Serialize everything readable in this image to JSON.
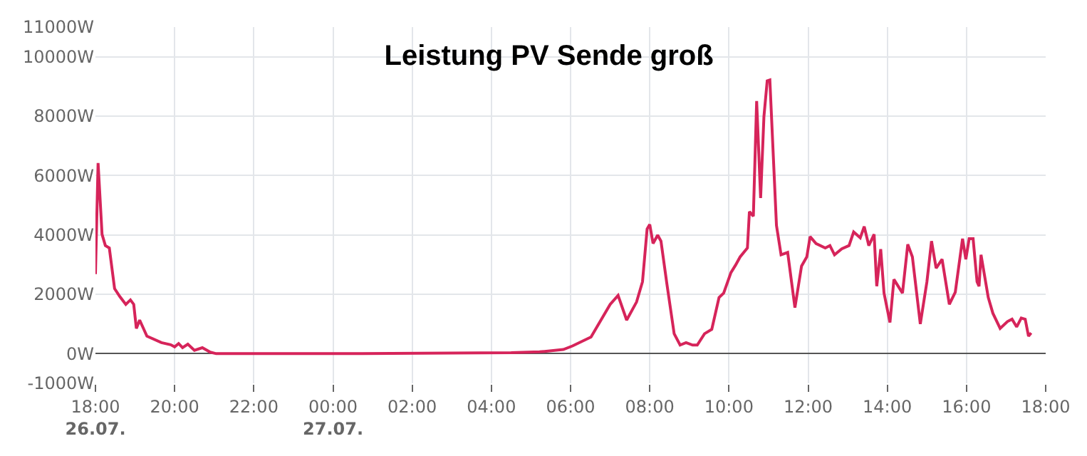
{
  "chart_data": {
    "type": "line",
    "title": "Leistung PV Sende groß",
    "x": [
      "--07-26T18:00",
      "--07-26T18:04",
      "--07-26T18:10",
      "--07-26T18:15",
      "--07-26T18:21",
      "--07-26T18:29",
      "--07-26T18:37",
      "--07-26T18:46",
      "--07-26T18:53",
      "--07-26T18:58",
      "--07-26T19:02",
      "--07-26T19:07",
      "--07-26T19:18",
      "--07-26T19:40",
      "--07-26T19:54",
      "--07-26T20:00",
      "--07-26T20:06",
      "--07-26T20:12",
      "--07-26T20:20",
      "--07-26T20:30",
      "--07-26T20:42",
      "--07-26T20:54",
      "--07-26T21:03",
      "--07-27T00:00",
      "--07-27T04:30",
      "--07-27T05:13",
      "--07-27T05:49",
      "--07-27T06:03",
      "--07-27T06:31",
      "--07-27T07:00",
      "--07-27T07:12",
      "--07-27T07:25",
      "--07-27T07:40",
      "--07-27T07:49",
      "--07-27T07:56",
      "--07-27T08:00",
      "--07-27T08:05",
      "--07-27T08:12",
      "--07-27T08:17",
      "--07-27T08:26",
      "--07-27T08:37",
      "--07-27T08:46",
      "--07-27T08:55",
      "--07-27T09:05",
      "--07-27T09:12",
      "--07-27T09:23",
      "--07-27T09:34",
      "--07-27T09:45",
      "--07-27T09:52",
      "--07-27T10:03",
      "--07-27T10:10",
      "--07-27T10:17",
      "--07-27T10:28",
      "--07-27T10:31",
      "--07-27T10:37",
      "--07-27T10:42",
      "--07-27T10:48",
      "--07-27T10:53",
      "--07-27T10:58",
      "--07-27T11:02",
      "--07-27T11:12",
      "--07-27T11:19",
      "--07-27T11:29",
      "--07-27T11:40",
      "--07-27T11:50",
      "--07-27T11:58",
      "--07-27T12:03",
      "--07-27T12:12",
      "--07-27T12:26",
      "--07-27T12:33",
      "--07-27T12:40",
      "--07-27T12:51",
      "--07-27T13:02",
      "--07-27T13:09",
      "--07-27T13:19",
      "--07-27T13:25",
      "--07-27T13:32",
      "--07-27T13:40",
      "--07-27T13:44",
      "--07-27T13:50",
      "--07-27T13:55",
      "--07-27T14:04",
      "--07-27T14:10",
      "--07-27T14:23",
      "--07-27T14:31",
      "--07-27T14:38",
      "--07-27T14:50",
      "--07-27T15:00",
      "--07-27T15:07",
      "--07-27T15:14",
      "--07-27T15:23",
      "--07-27T15:34",
      "--07-27T15:43",
      "--07-27T15:54",
      "--07-27T15:59",
      "--07-27T16:04",
      "--07-27T16:10",
      "--07-27T16:16",
      "--07-27T16:19",
      "--07-27T16:22",
      "--07-27T16:33",
      "--07-27T16:40",
      "--07-27T16:51",
      "--07-27T17:02",
      "--07-27T17:09",
      "--07-27T17:16",
      "--07-27T17:23",
      "--07-27T17:29",
      "--07-27T17:34",
      "--07-27T17:38"
    ],
    "series": [
      {
        "color": "#d6245a",
        "values": [
          2680,
          6420,
          4020,
          3640,
          3560,
          2190,
          1920,
          1660,
          1810,
          1660,
          850,
          1130,
          590,
          370,
          300,
          230,
          340,
          200,
          320,
          110,
          200,
          50,
          0,
          0,
          30,
          60,
          140,
          260,
          560,
          1660,
          1960,
          1130,
          1740,
          2420,
          4200,
          4350,
          3710,
          3990,
          3790,
          2340,
          670,
          290,
          370,
          290,
          290,
          670,
          820,
          1890,
          2040,
          2730,
          2980,
          3260,
          3560,
          4780,
          4630,
          8510,
          5240,
          7980,
          9190,
          9220,
          4320,
          3330,
          3410,
          1550,
          2950,
          3260,
          3940,
          3710,
          3560,
          3640,
          3330,
          3530,
          3640,
          4100,
          3900,
          4280,
          3640,
          4020,
          2270,
          3520,
          2040,
          1050,
          2500,
          2040,
          3680,
          3260,
          1000,
          2420,
          3790,
          2880,
          3180,
          1660,
          2070,
          3870,
          3180,
          3870,
          3870,
          2420,
          2270,
          3330,
          1890,
          1360,
          850,
          1080,
          1160,
          900,
          1200,
          1160,
          590,
          700
        ]
      }
    ],
    "xlim": [
      "--07-26T18:00",
      "--07-27T18:00"
    ],
    "xticks": [
      {
        "value": "--07-26T18:00",
        "label": "18:00\n26.07."
      },
      {
        "value": "--07-26T20:00",
        "label": "20:00"
      },
      {
        "value": "--07-26T22:00",
        "label": "22:00"
      },
      {
        "value": "--07-27T00:00",
        "label": "00:00\n27.07."
      },
      {
        "value": "--07-27T02:00",
        "label": "02:00"
      },
      {
        "value": "--07-27T04:00",
        "label": "04:00"
      },
      {
        "value": "--07-27T06:00",
        "label": "06:00"
      },
      {
        "value": "--07-27T08:00",
        "label": "08:00"
      },
      {
        "value": "--07-27T10:00",
        "label": "10:00"
      },
      {
        "value": "--07-27T12:00",
        "label": "12:00"
      },
      {
        "value": "--07-27T14:00",
        "label": "14:00"
      },
      {
        "value": "--07-27T16:00",
        "label": "16:00"
      },
      {
        "value": "--07-27T18:00",
        "label": "18:00"
      }
    ],
    "ylim": [
      -1000,
      11000
    ],
    "yticks": [
      {
        "value": -1000,
        "label": "-1000W"
      },
      {
        "value": 0,
        "label": "0W"
      },
      {
        "value": 2000,
        "label": "2000W"
      },
      {
        "value": 4000,
        "label": "4000W"
      },
      {
        "value": 6000,
        "label": "6000W"
      },
      {
        "value": 8000,
        "label": "8000W"
      },
      {
        "value": 10000,
        "label": "10000W"
      },
      {
        "value": 11000,
        "label": "11000W"
      }
    ],
    "grid": true,
    "marker": "none",
    "line_style": "solid"
  }
}
